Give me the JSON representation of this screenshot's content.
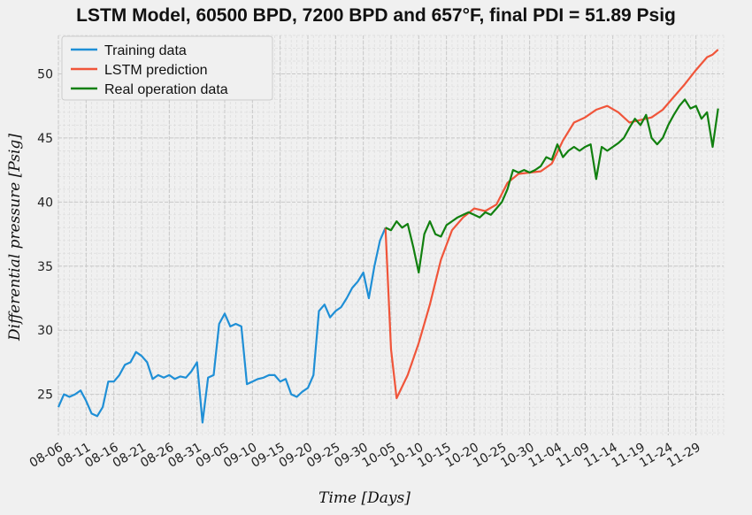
{
  "chart_data": {
    "type": "line",
    "title": "LSTM Model, 60500 BPD, 7200 BPD and 657°F, final PDI = 51.89 Psig",
    "xlabel": "Time [Days]",
    "ylabel": "Differential pressure [Psig]",
    "xlim": [
      "08-06",
      "12-04"
    ],
    "ylim": [
      21.8,
      53.0
    ],
    "grid": true,
    "legend_position": "top-left",
    "x_ticks": [
      "08-06",
      "08-11",
      "08-16",
      "08-21",
      "08-26",
      "08-31",
      "09-05",
      "09-10",
      "09-15",
      "09-20",
      "09-25",
      "09-30",
      "10-05",
      "10-10",
      "10-15",
      "10-20",
      "10-25",
      "10-30",
      "11-04",
      "11-09",
      "11-14",
      "11-19",
      "11-24",
      "11-29"
    ],
    "y_ticks": [
      25,
      30,
      35,
      40,
      45,
      50
    ],
    "series": [
      {
        "name": "Training data",
        "color": "#1f8fd6",
        "points": [
          [
            "08-06",
            24.0
          ],
          [
            "08-07",
            25.0
          ],
          [
            "08-08",
            24.8
          ],
          [
            "08-09",
            25.0
          ],
          [
            "08-10",
            25.3
          ],
          [
            "08-11",
            24.5
          ],
          [
            "08-12",
            23.5
          ],
          [
            "08-13",
            23.3
          ],
          [
            "08-14",
            24.0
          ],
          [
            "08-15",
            26.0
          ],
          [
            "08-16",
            26.0
          ],
          [
            "08-17",
            26.5
          ],
          [
            "08-18",
            27.3
          ],
          [
            "08-19",
            27.5
          ],
          [
            "08-20",
            28.3
          ],
          [
            "08-21",
            28.0
          ],
          [
            "08-22",
            27.5
          ],
          [
            "08-23",
            26.2
          ],
          [
            "08-24",
            26.5
          ],
          [
            "08-25",
            26.3
          ],
          [
            "08-26",
            26.5
          ],
          [
            "08-27",
            26.2
          ],
          [
            "08-28",
            26.4
          ],
          [
            "08-29",
            26.3
          ],
          [
            "08-30",
            26.8
          ],
          [
            "08-31",
            27.5
          ],
          [
            "09-01",
            22.8
          ],
          [
            "09-02",
            26.3
          ],
          [
            "09-03",
            26.5
          ],
          [
            "09-04",
            30.5
          ],
          [
            "09-05",
            31.3
          ],
          [
            "09-06",
            30.3
          ],
          [
            "09-07",
            30.5
          ],
          [
            "09-08",
            30.3
          ],
          [
            "09-09",
            25.8
          ],
          [
            "09-10",
            26.0
          ],
          [
            "09-11",
            26.2
          ],
          [
            "09-12",
            26.3
          ],
          [
            "09-13",
            26.5
          ],
          [
            "09-14",
            26.5
          ],
          [
            "09-15",
            26.0
          ],
          [
            "09-16",
            26.2
          ],
          [
            "09-17",
            25.0
          ],
          [
            "09-18",
            24.8
          ],
          [
            "09-19",
            25.2
          ],
          [
            "09-20",
            25.5
          ],
          [
            "09-21",
            26.5
          ],
          [
            "09-22",
            31.5
          ],
          [
            "09-23",
            32.0
          ],
          [
            "09-24",
            31.0
          ],
          [
            "09-25",
            31.5
          ],
          [
            "09-26",
            31.8
          ],
          [
            "09-27",
            32.5
          ],
          [
            "09-28",
            33.3
          ],
          [
            "09-29",
            33.8
          ],
          [
            "09-30",
            34.5
          ],
          [
            "10-01",
            32.5
          ],
          [
            "10-02",
            35.0
          ],
          [
            "10-03",
            37.0
          ],
          [
            "10-04",
            38.0
          ]
        ]
      },
      {
        "name": "LSTM prediction",
        "color": "#f0553a",
        "points": [
          [
            "10-04",
            38.0
          ],
          [
            "10-05",
            28.5
          ],
          [
            "10-06",
            24.7
          ],
          [
            "10-08",
            26.5
          ],
          [
            "10-10",
            29.0
          ],
          [
            "10-12",
            32.0
          ],
          [
            "10-14",
            35.5
          ],
          [
            "10-16",
            37.8
          ],
          [
            "10-18",
            38.8
          ],
          [
            "10-20",
            39.5
          ],
          [
            "10-22",
            39.3
          ],
          [
            "10-24",
            39.8
          ],
          [
            "10-26",
            41.5
          ],
          [
            "10-28",
            42.2
          ],
          [
            "10-30",
            42.3
          ],
          [
            "11-01",
            42.4
          ],
          [
            "11-03",
            43.0
          ],
          [
            "11-05",
            44.8
          ],
          [
            "11-07",
            46.2
          ],
          [
            "11-09",
            46.6
          ],
          [
            "11-11",
            47.2
          ],
          [
            "11-13",
            47.5
          ],
          [
            "11-15",
            47.0
          ],
          [
            "11-17",
            46.2
          ],
          [
            "11-19",
            46.4
          ],
          [
            "11-21",
            46.6
          ],
          [
            "11-23",
            47.2
          ],
          [
            "11-25",
            48.2
          ],
          [
            "11-27",
            49.2
          ],
          [
            "11-29",
            50.3
          ],
          [
            "12-01",
            51.3
          ],
          [
            "12-02",
            51.5
          ],
          [
            "12-03",
            51.89
          ]
        ]
      },
      {
        "name": "Real operation data",
        "color": "#11800f",
        "points": [
          [
            "10-04",
            38.0
          ],
          [
            "10-05",
            37.8
          ],
          [
            "10-06",
            38.5
          ],
          [
            "10-07",
            38.0
          ],
          [
            "10-08",
            38.3
          ],
          [
            "10-09",
            36.5
          ],
          [
            "10-10",
            34.5
          ],
          [
            "10-11",
            37.5
          ],
          [
            "10-12",
            38.5
          ],
          [
            "10-13",
            37.5
          ],
          [
            "10-14",
            37.3
          ],
          [
            "10-15",
            38.2
          ],
          [
            "10-16",
            38.5
          ],
          [
            "10-17",
            38.8
          ],
          [
            "10-18",
            39.0
          ],
          [
            "10-19",
            39.2
          ],
          [
            "10-20",
            39.0
          ],
          [
            "10-21",
            38.8
          ],
          [
            "10-22",
            39.2
          ],
          [
            "10-23",
            39.0
          ],
          [
            "10-24",
            39.5
          ],
          [
            "10-25",
            40.0
          ],
          [
            "10-26",
            41.0
          ],
          [
            "10-27",
            42.5
          ],
          [
            "10-28",
            42.3
          ],
          [
            "10-29",
            42.5
          ],
          [
            "10-30",
            42.3
          ],
          [
            "10-31",
            42.5
          ],
          [
            "11-01",
            42.8
          ],
          [
            "11-02",
            43.5
          ],
          [
            "11-03",
            43.3
          ],
          [
            "11-04",
            44.5
          ],
          [
            "11-05",
            43.5
          ],
          [
            "11-06",
            44.0
          ],
          [
            "11-07",
            44.3
          ],
          [
            "11-08",
            44.0
          ],
          [
            "11-09",
            44.3
          ],
          [
            "11-10",
            44.5
          ],
          [
            "11-11",
            41.8
          ],
          [
            "11-12",
            44.3
          ],
          [
            "11-13",
            44.0
          ],
          [
            "11-14",
            44.3
          ],
          [
            "11-15",
            44.6
          ],
          [
            "11-16",
            45.0
          ],
          [
            "11-17",
            45.8
          ],
          [
            "11-18",
            46.5
          ],
          [
            "11-19",
            46.0
          ],
          [
            "11-20",
            46.8
          ],
          [
            "11-21",
            45.0
          ],
          [
            "11-22",
            44.5
          ],
          [
            "11-23",
            45.0
          ],
          [
            "11-24",
            46.0
          ],
          [
            "11-25",
            46.8
          ],
          [
            "11-26",
            47.5
          ],
          [
            "11-27",
            48.0
          ],
          [
            "11-28",
            47.3
          ],
          [
            "11-29",
            47.5
          ],
          [
            "11-30",
            46.5
          ],
          [
            "12-01",
            47.0
          ],
          [
            "12-02",
            44.3
          ],
          [
            "12-03",
            47.3
          ]
        ]
      }
    ]
  }
}
